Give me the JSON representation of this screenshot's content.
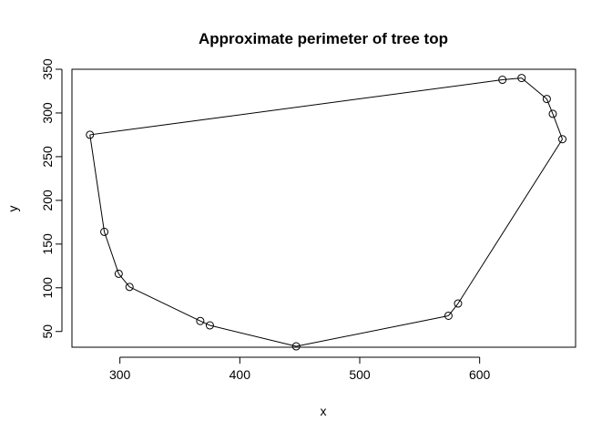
{
  "chart_data": {
    "type": "scatter",
    "title": "Approximate perimeter of tree top",
    "xlabel": "x",
    "ylabel": "y",
    "xlim": [
      260,
      680
    ],
    "ylim": [
      32,
      350
    ],
    "x_ticks": [
      300,
      400,
      500,
      600
    ],
    "y_ticks": [
      50,
      100,
      150,
      200,
      250,
      300,
      350
    ],
    "grid": false,
    "legend": "none",
    "marker": "open-circle",
    "connected": true,
    "closed": true,
    "series": [
      {
        "points": [
          {
            "x": 275,
            "y": 275
          },
          {
            "x": 619,
            "y": 338
          },
          {
            "x": 635,
            "y": 340
          },
          {
            "x": 656,
            "y": 316
          },
          {
            "x": 661,
            "y": 299
          },
          {
            "x": 669,
            "y": 270
          },
          {
            "x": 582,
            "y": 82
          },
          {
            "x": 574,
            "y": 68
          },
          {
            "x": 447,
            "y": 33
          },
          {
            "x": 375,
            "y": 57
          },
          {
            "x": 367,
            "y": 62
          },
          {
            "x": 308,
            "y": 101
          },
          {
            "x": 299,
            "y": 116
          },
          {
            "x": 287,
            "y": 164
          },
          {
            "x": 275,
            "y": 275
          }
        ]
      }
    ],
    "colors": {
      "line": "#000000",
      "marker": "#000000",
      "background": "#ffffff"
    }
  }
}
